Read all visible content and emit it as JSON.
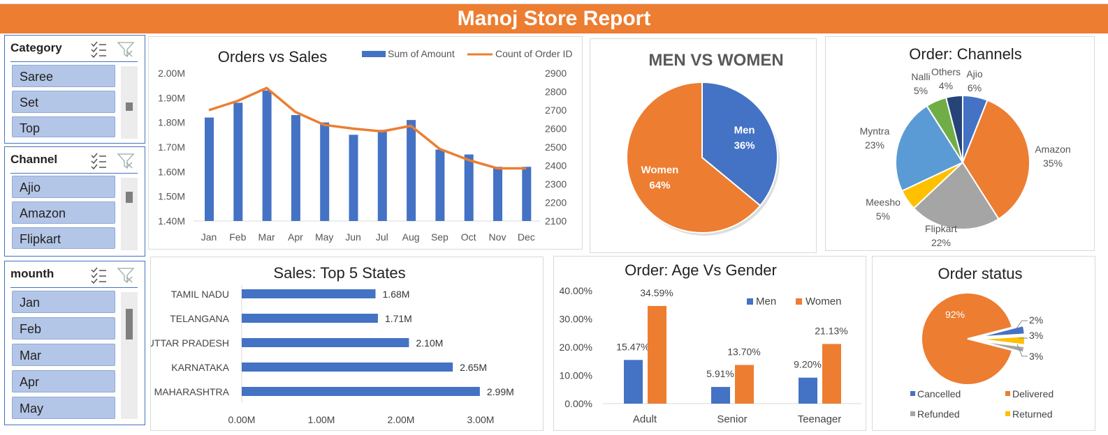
{
  "banner": {
    "title": "Manoj Store Report"
  },
  "slicers": {
    "category": {
      "title": "Category",
      "items": [
        "Saree",
        "Set",
        "Top"
      ]
    },
    "channel": {
      "title": "Channel",
      "items": [
        "Ajio",
        "Amazon",
        "Flipkart"
      ]
    },
    "month": {
      "title": "mounth",
      "items": [
        "Jan",
        "Feb",
        "Mar",
        "Apr",
        "May"
      ]
    }
  },
  "colors": {
    "orange": "#ed7d31",
    "blue": "#4472c4",
    "gray": "#a5a5a5",
    "yellow": "#ffc000",
    "lightblue": "#5b9bd5",
    "green": "#70ad47",
    "navy": "#264478"
  },
  "chart_data": [
    {
      "type": "bar",
      "title": "Orders vs Sales",
      "categories": [
        "Jan",
        "Feb",
        "Mar",
        "Apr",
        "May",
        "Jun",
        "Jul",
        "Aug",
        "Sep",
        "Oct",
        "Nov",
        "Dec"
      ],
      "series": [
        {
          "name": "Sum of Amount",
          "type": "bar",
          "axis": "left",
          "values": [
            1.82,
            1.88,
            1.93,
            1.83,
            1.8,
            1.75,
            1.77,
            1.81,
            1.69,
            1.67,
            1.62,
            1.62
          ]
        },
        {
          "name": "Count of Order ID",
          "type": "line",
          "axis": "right",
          "values": [
            2700,
            2750,
            2820,
            2690,
            2620,
            2600,
            2585,
            2615,
            2490,
            2430,
            2385,
            2385
          ]
        }
      ],
      "y_left_ticks": [
        "2.00M",
        "1.90M",
        "1.80M",
        "1.70M",
        "1.60M",
        "1.50M",
        "1.40M"
      ],
      "y_left_range": [
        1.4,
        2.0
      ],
      "y_right_ticks": [
        "2900",
        "2800",
        "2700",
        "2600",
        "2500",
        "2400",
        "2300",
        "2200",
        "2100"
      ],
      "y_right_range": [
        2100,
        2900
      ],
      "legend": "top-right"
    },
    {
      "type": "pie",
      "title": "MEN VS WOMEN",
      "slices": [
        {
          "name": "Men",
          "value": 36,
          "label": "36%"
        },
        {
          "name": "Women",
          "value": 64,
          "label": "64%"
        }
      ]
    },
    {
      "type": "pie",
      "title": "Order: Channels",
      "slices": [
        {
          "name": "Ajio",
          "value": 6,
          "label": "6%"
        },
        {
          "name": "Amazon",
          "value": 35,
          "label": "35%"
        },
        {
          "name": "Flipkart",
          "value": 22,
          "label": "22%"
        },
        {
          "name": "Meesho",
          "value": 5,
          "label": "5%"
        },
        {
          "name": "Myntra",
          "value": 23,
          "label": "23%"
        },
        {
          "name": "Nalli",
          "value": 5,
          "label": "5%"
        },
        {
          "name": "Others",
          "value": 4,
          "label": "4%"
        }
      ]
    },
    {
      "type": "bar",
      "orientation": "horizontal",
      "title": "Sales: Top 5 States",
      "categories": [
        "TAMIL NADU",
        "TELANGANA",
        "UTTAR PRADESH",
        "KARNATAKA",
        "MAHARASHTRA"
      ],
      "values": [
        1.68,
        1.71,
        2.1,
        2.65,
        2.99
      ],
      "value_labels": [
        "1.68M",
        "1.71M",
        "2.10M",
        "2.65M",
        "2.99M"
      ],
      "x_ticks": [
        "0.00M",
        "1.00M",
        "2.00M",
        "3.00M"
      ],
      "xlim": [
        0,
        3
      ]
    },
    {
      "type": "bar",
      "title": "Order: Age Vs Gender",
      "categories": [
        "Adult",
        "Senior",
        "Teenager"
      ],
      "series": [
        {
          "name": "Men",
          "values": [
            15.47,
            5.91,
            9.2
          ],
          "labels": [
            "15.47%",
            "5.91%",
            "9.20%"
          ]
        },
        {
          "name": "Women",
          "values": [
            34.59,
            13.7,
            21.13
          ],
          "labels": [
            "34.59%",
            "13.70%",
            "21.13%"
          ]
        }
      ],
      "y_ticks": [
        "40.00%",
        "30.00%",
        "20.00%",
        "10.00%",
        "0.00%"
      ],
      "ylim": [
        0,
        40
      ],
      "legend": "top-right"
    },
    {
      "type": "pie",
      "title": "Order status",
      "slices": [
        {
          "name": "Delivered",
          "value": 92,
          "label": "92%"
        },
        {
          "name": "Cancelled",
          "value": 3,
          "label": "3%"
        },
        {
          "name": "Returned",
          "value": 3,
          "label": "3%"
        },
        {
          "name": "Refunded",
          "value": 2,
          "label": "2%"
        }
      ],
      "legend": [
        "Cancelled",
        "Delivered",
        "Refunded",
        "Returned"
      ]
    }
  ]
}
